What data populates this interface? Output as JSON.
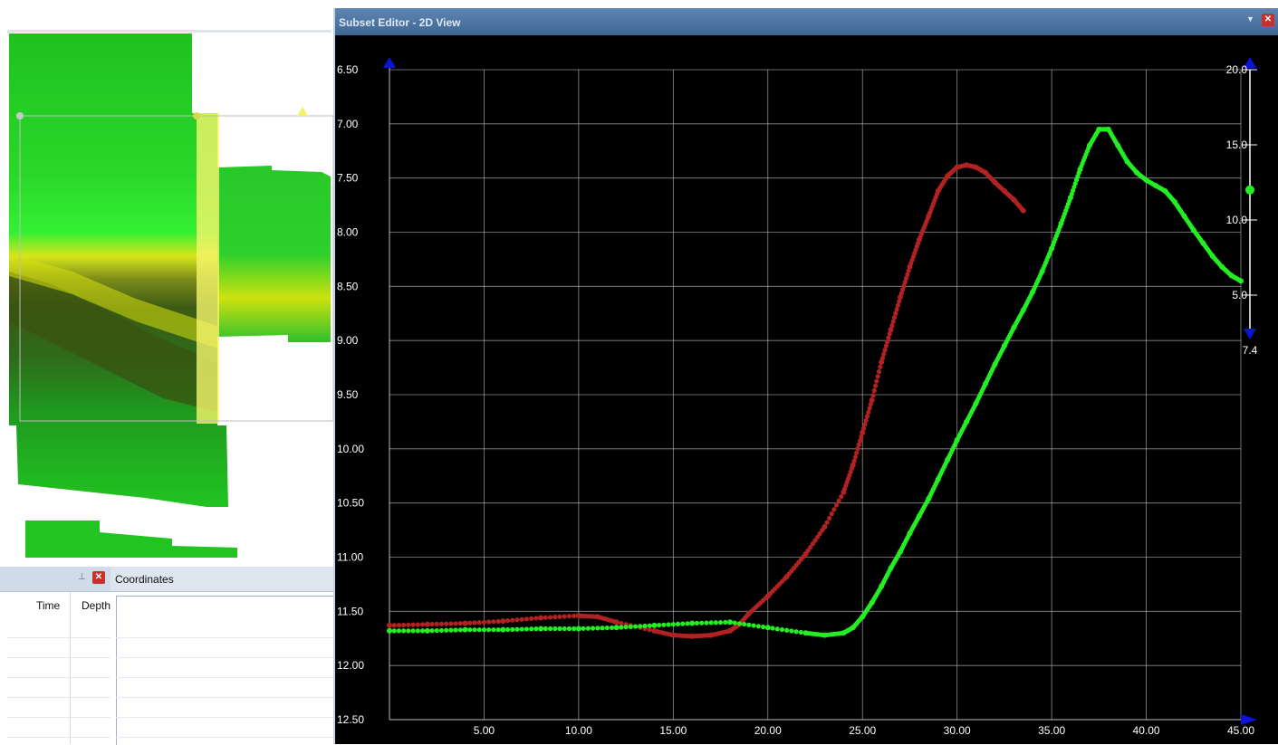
{
  "chart_window": {
    "title": "Subset Editor - 2D View",
    "menu_icon": "chevron-down-icon",
    "close_icon": "close-icon"
  },
  "coordinates_panel": {
    "title": "Coordinates"
  },
  "table_panel": {
    "columns": [
      "Time",
      "Depth"
    ]
  },
  "colors": {
    "series_red": "#b22222",
    "series_green": "#22ee22",
    "grid": "#bdbdbd",
    "marker_blue": "#0a14d8"
  },
  "chart_data": {
    "type": "scatter",
    "title": "",
    "xlabel": "",
    "ylabel": "",
    "xlim": [
      0,
      45
    ],
    "ylim": [
      12.5,
      6.5
    ],
    "y_inverted": true,
    "grid": true,
    "x_ticks": [
      "5.00",
      "10.00",
      "15.00",
      "20.00",
      "25.00",
      "30.00",
      "35.00",
      "40.00",
      "45.00"
    ],
    "y_ticks": [
      "6.50",
      "7.00",
      "7.50",
      "8.00",
      "8.50",
      "9.00",
      "9.50",
      "10.00",
      "10.50",
      "11.00",
      "11.50",
      "12.00",
      "12.50"
    ],
    "series": [
      {
        "color": "#b22222",
        "x": [
          0,
          2,
          4,
          6,
          8,
          10,
          11,
          12,
          14,
          15,
          16,
          17,
          18,
          18.5,
          19,
          20,
          21,
          22,
          23,
          24,
          24.5,
          25,
          25.5,
          26,
          26.5,
          27,
          27.5,
          28,
          28.5,
          29,
          29.5,
          30,
          30.5,
          31,
          31.5,
          32,
          32.5,
          33,
          33.5
        ],
        "y": [
          11.63,
          11.62,
          11.61,
          11.59,
          11.56,
          11.54,
          11.55,
          11.6,
          11.68,
          11.72,
          11.73,
          11.72,
          11.68,
          11.62,
          11.52,
          11.36,
          11.18,
          10.97,
          10.72,
          10.4,
          10.15,
          9.85,
          9.55,
          9.2,
          8.9,
          8.6,
          8.32,
          8.07,
          7.85,
          7.62,
          7.48,
          7.4,
          7.38,
          7.4,
          7.45,
          7.54,
          7.62,
          7.7,
          7.8
        ]
      },
      {
        "color": "#22ee22",
        "x": [
          0,
          2,
          4,
          6,
          8,
          10,
          12,
          14,
          16,
          18,
          20,
          22,
          23,
          24,
          24.5,
          25,
          25.5,
          26,
          26.5,
          27,
          27.5,
          28,
          28.5,
          29,
          29.5,
          30,
          30.5,
          31,
          31.5,
          32,
          32.5,
          33,
          33.5,
          34,
          34.5,
          35,
          35.5,
          36,
          36.5,
          37,
          37.5,
          38,
          38.5,
          39,
          39.5,
          40,
          40.5,
          41,
          41.5,
          42,
          42.5,
          43,
          43.5,
          44,
          44.5,
          45
        ],
        "y": [
          11.68,
          11.68,
          11.67,
          11.67,
          11.66,
          11.66,
          11.65,
          11.63,
          11.61,
          11.6,
          11.65,
          11.7,
          11.72,
          11.7,
          11.65,
          11.55,
          11.42,
          11.27,
          11.1,
          10.95,
          10.78,
          10.62,
          10.46,
          10.28,
          10.1,
          9.92,
          9.75,
          9.58,
          9.4,
          9.22,
          9.05,
          8.88,
          8.72,
          8.55,
          8.36,
          8.15,
          7.92,
          7.68,
          7.42,
          7.2,
          7.05,
          7.05,
          7.2,
          7.35,
          7.45,
          7.52,
          7.57,
          7.62,
          7.72,
          7.85,
          7.98,
          8.1,
          8.22,
          8.32,
          8.4,
          8.45
        ]
      }
    ],
    "color_scale": {
      "labels": [
        "20.0",
        "15.0",
        "10.0",
        "5.0",
        "7.4"
      ],
      "marker_value": 7.4
    }
  }
}
